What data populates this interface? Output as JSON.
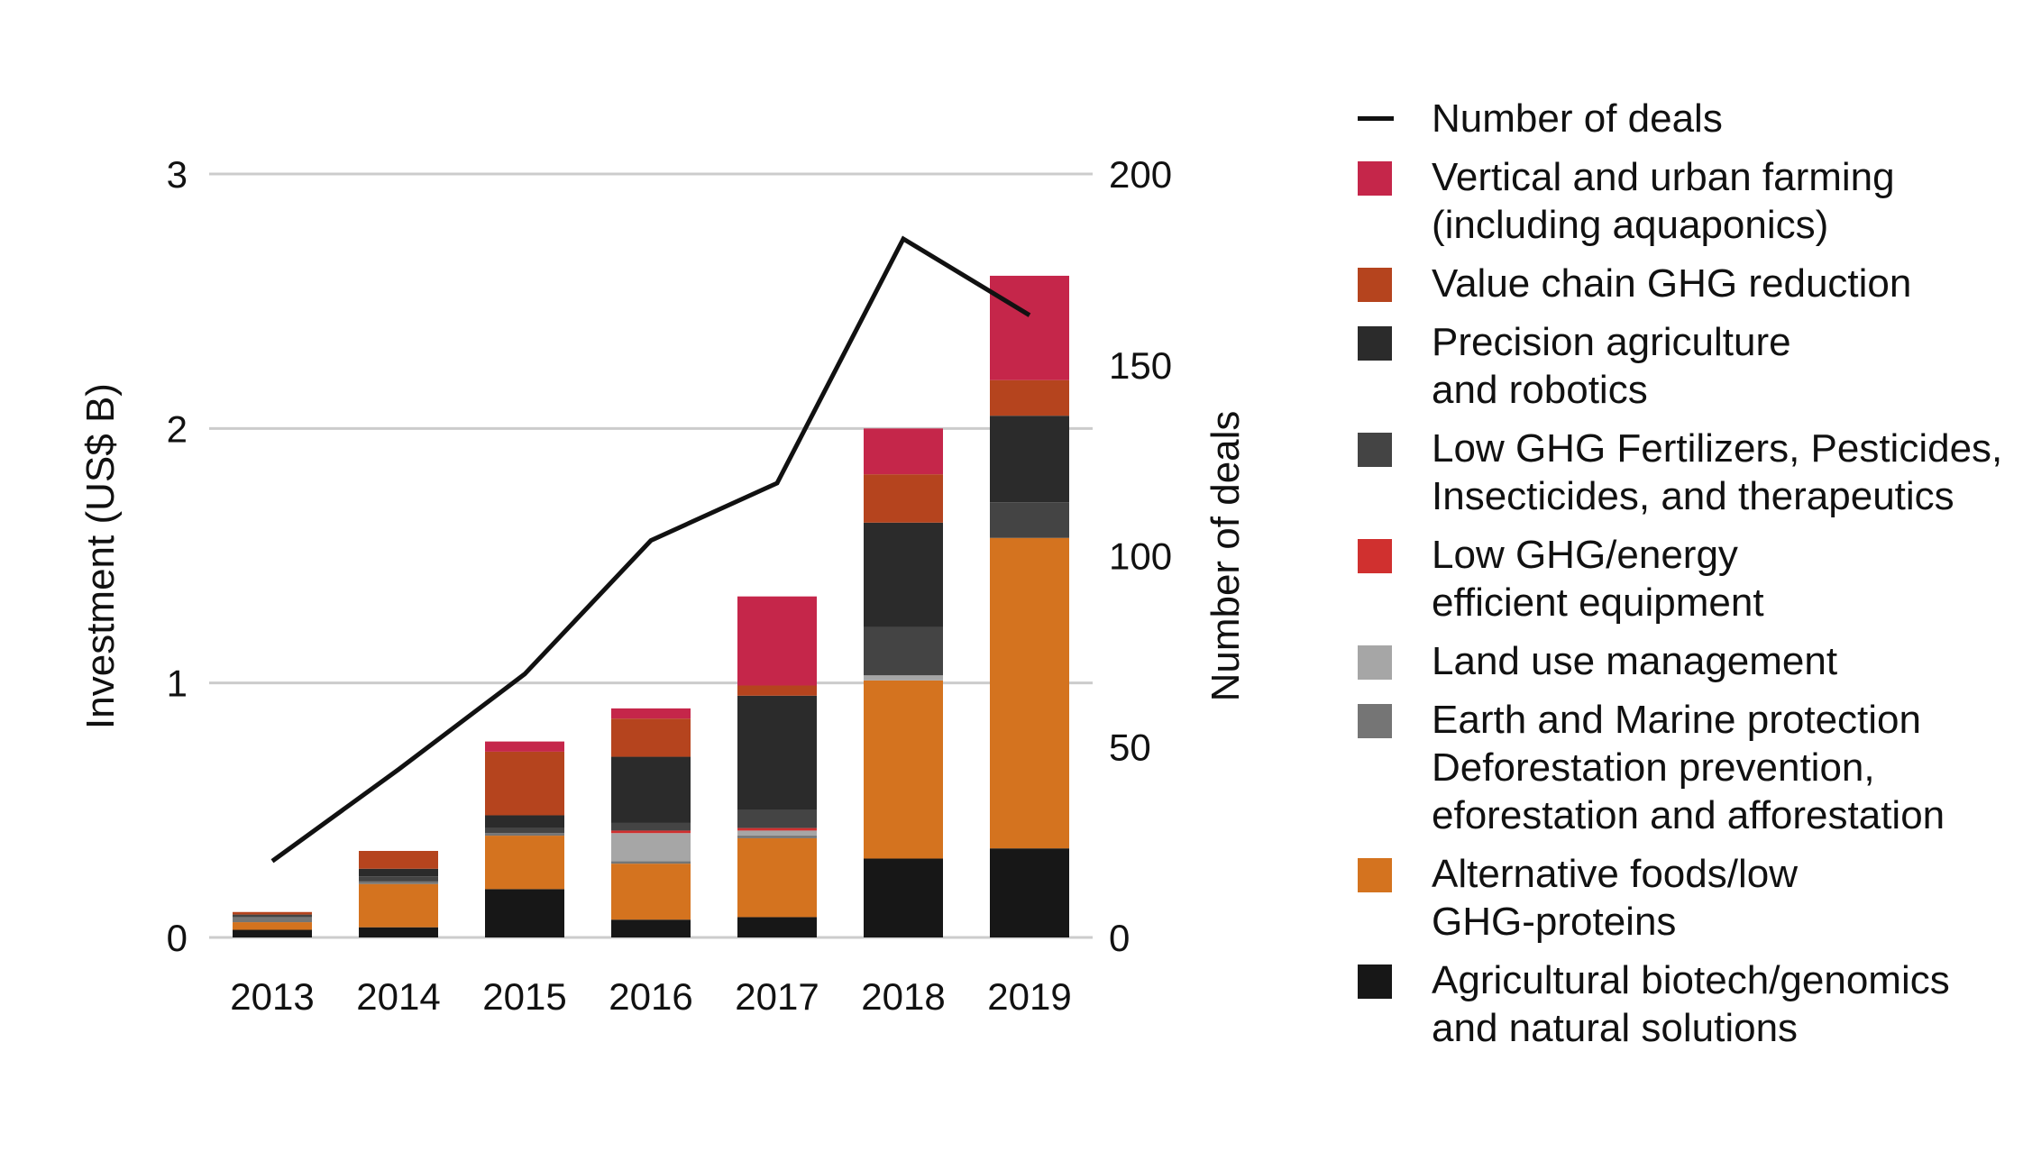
{
  "chart_data": {
    "type": "bar",
    "stacked": true,
    "categories": [
      "2013",
      "2014",
      "2015",
      "2016",
      "2017",
      "2018",
      "2019"
    ],
    "ylabel": "Investment (US$ B)",
    "ylim": [
      0,
      3
    ],
    "yticks": [
      "0",
      "1",
      "2",
      "3"
    ],
    "y2label": "Number of deals",
    "y2lim": [
      0,
      200
    ],
    "y2ticks": [
      "0",
      "50",
      "100",
      "150",
      "200"
    ],
    "series": [
      {
        "name": "Agricultural biotech/genomics\nand natural solutions",
        "color": "#171717",
        "values": [
          0.03,
          0.04,
          0.19,
          0.07,
          0.08,
          0.31,
          0.35
        ]
      },
      {
        "name": "Alternative foods/low\nGHG-proteins",
        "color": "#d4731f",
        "values": [
          0.03,
          0.17,
          0.21,
          0.22,
          0.31,
          0.7,
          1.22
        ]
      },
      {
        "name": "Earth and Marine protection\nDeforestation prevention,\neforestation and afforestation",
        "color": "#757575",
        "values": [
          0.02,
          0.01,
          0.01,
          0.01,
          0.01,
          0.0,
          0.0
        ]
      },
      {
        "name": "Land use management",
        "color": "#a6a6a6",
        "values": [
          0.0,
          0.0,
          0.0,
          0.11,
          0.02,
          0.02,
          0.0
        ]
      },
      {
        "name": "Low GHG/energy\nefficient equipment",
        "color": "#d0302f",
        "values": [
          0.0,
          0.0,
          0.0,
          0.01,
          0.01,
          0.0,
          0.0
        ]
      },
      {
        "name": "Low GHG Fertilizers, Pesticides,\nInsecticides, and therapeutics",
        "color": "#444444",
        "values": [
          0.01,
          0.02,
          0.02,
          0.03,
          0.07,
          0.19,
          0.14
        ]
      },
      {
        "name": "Precision agriculture\nand robotics",
        "color": "#2b2b2b",
        "values": [
          0.0,
          0.03,
          0.05,
          0.26,
          0.45,
          0.41,
          0.34
        ]
      },
      {
        "name": "Value chain GHG reduction",
        "color": "#b5441e",
        "values": [
          0.01,
          0.07,
          0.25,
          0.15,
          0.04,
          0.19,
          0.14
        ]
      },
      {
        "name": "Vertical and urban farming\n(including aquaponics)",
        "color": "#c5264a",
        "values": [
          0.0,
          0.0,
          0.04,
          0.04,
          0.35,
          0.18,
          0.41
        ]
      }
    ],
    "line": {
      "name": "Number of deals",
      "color": "#111111",
      "axis": "right",
      "values": [
        20,
        44,
        69,
        104,
        119,
        183,
        163
      ]
    },
    "legend_position": "right",
    "grid": true
  }
}
